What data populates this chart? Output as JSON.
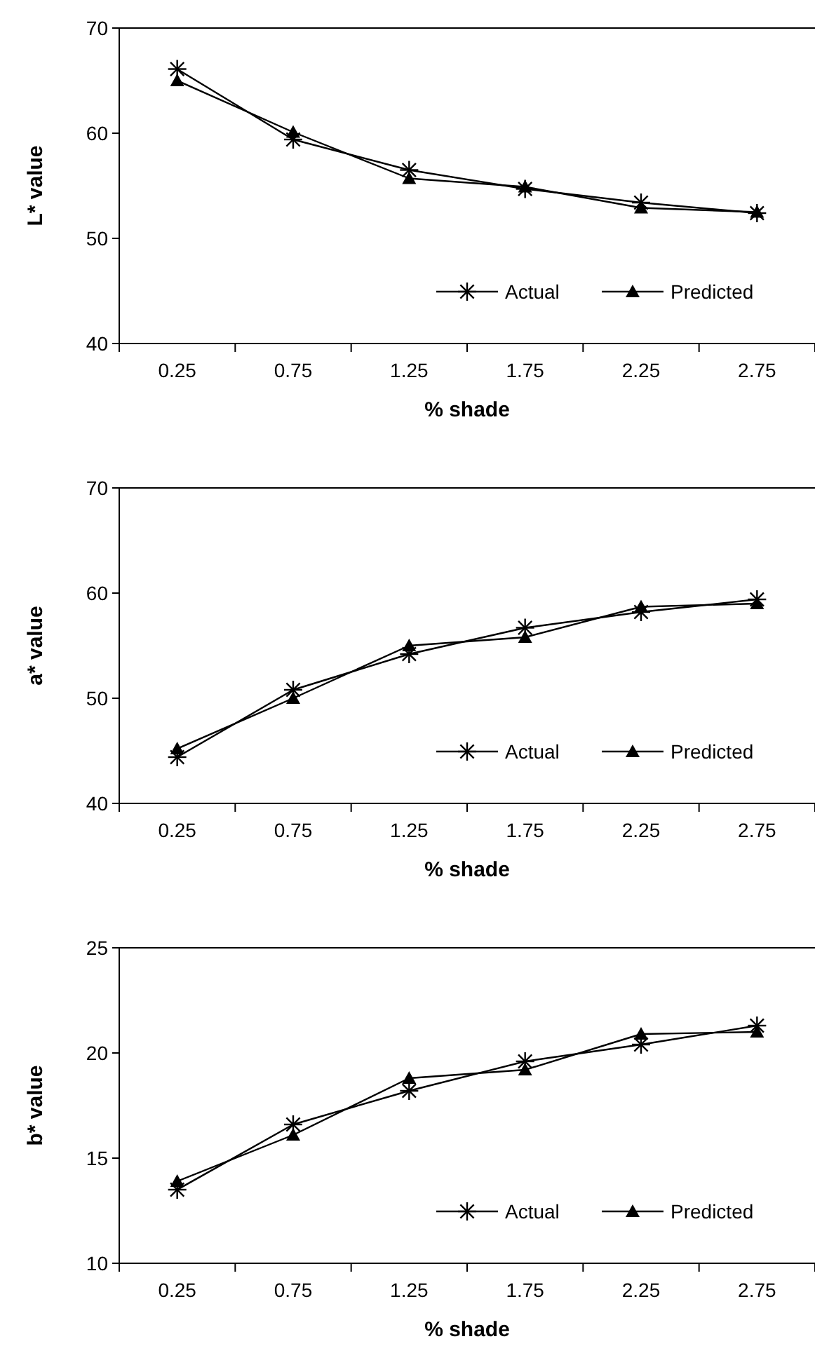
{
  "chart_data": [
    {
      "type": "line",
      "ylabel": "L* value",
      "xlabel": "% shade",
      "categories": [
        "0.25",
        "0.75",
        "1.25",
        "1.75",
        "2.25",
        "2.75"
      ],
      "ylim": [
        40,
        70
      ],
      "yticks": [
        40,
        50,
        60,
        70
      ],
      "legend": "bottom right",
      "grid": false,
      "series": [
        {
          "name": "Actual",
          "color": "#000000",
          "marker": "cross",
          "values": [
            66.1,
            59.4,
            56.5,
            54.7,
            53.4,
            52.4
          ]
        },
        {
          "name": "Predicted",
          "color": "#000000",
          "marker": "triangle",
          "values": [
            65.0,
            60.1,
            55.7,
            54.9,
            52.9,
            52.5
          ]
        }
      ]
    },
    {
      "type": "line",
      "ylabel": "a* value",
      "xlabel": "% shade",
      "categories": [
        "0.25",
        "0.75",
        "1.25",
        "1.75",
        "2.25",
        "2.75"
      ],
      "ylim": [
        40,
        70
      ],
      "yticks": [
        40,
        50,
        60,
        70
      ],
      "legend": "bottom right",
      "grid": false,
      "series": [
        {
          "name": "Actual",
          "color": "#000000",
          "marker": "cross",
          "values": [
            44.4,
            50.8,
            54.2,
            56.7,
            58.2,
            59.4
          ]
        },
        {
          "name": "Predicted",
          "color": "#000000",
          "marker": "triangle",
          "values": [
            45.2,
            50.0,
            55.0,
            55.8,
            58.7,
            59.0
          ]
        }
      ]
    },
    {
      "type": "line",
      "ylabel": "b* value",
      "xlabel": "% shade",
      "categories": [
        "0.25",
        "0.75",
        "1.25",
        "1.75",
        "2.25",
        "2.75"
      ],
      "ylim": [
        10,
        25
      ],
      "yticks": [
        10,
        15,
        20,
        25
      ],
      "legend": "bottom right",
      "grid": false,
      "series": [
        {
          "name": "Actual",
          "color": "#000000",
          "marker": "cross",
          "values": [
            13.5,
            16.6,
            18.2,
            19.6,
            20.4,
            21.3
          ]
        },
        {
          "name": "Predicted",
          "color": "#000000",
          "marker": "triangle",
          "values": [
            13.9,
            16.1,
            18.8,
            19.2,
            20.9,
            21.0
          ]
        }
      ]
    }
  ]
}
